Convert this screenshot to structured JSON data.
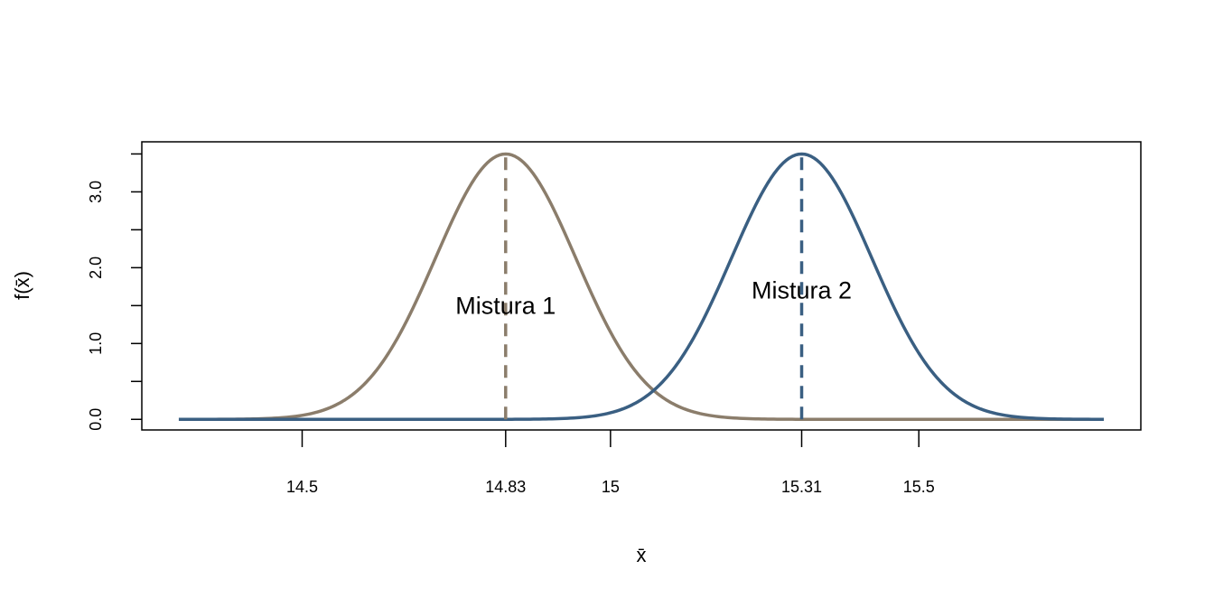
{
  "chart_data": {
    "type": "line",
    "title": "",
    "xlabel": "x̄",
    "ylabel": "f(x̄)",
    "xlim": [
      14.24,
      15.86
    ],
    "ylim": [
      -0.14,
      3.66
    ],
    "x_ticks": [
      14.5,
      14.83,
      15,
      15.31,
      15.5
    ],
    "x_tick_labels": [
      "14.5",
      "14.83",
      "15",
      "15.31",
      "15.5"
    ],
    "y_ticks": [
      0,
      0.5,
      1,
      1.5,
      2,
      2.5,
      3,
      3.5
    ],
    "y_tick_labels": [
      {
        "value": 0,
        "label": "0.0"
      },
      {
        "value": 1,
        "label": "1.0"
      },
      {
        "value": 2,
        "label": "2.0"
      },
      {
        "value": 3,
        "label": "3.0"
      }
    ],
    "grid": false,
    "series": [
      {
        "name": "Mistura 1",
        "mean": 14.83,
        "sd": 0.114,
        "color": "#8B7D6B",
        "x_range": [
          14.3,
          15.8
        ]
      },
      {
        "name": "Mistura 2",
        "mean": 15.31,
        "sd": 0.114,
        "color": "#3A5F82",
        "x_range": [
          14.3,
          15.8
        ]
      }
    ],
    "vlines": [
      {
        "x": 14.83,
        "y_to": 3.5,
        "color": "#8B7D6B",
        "style": "dashed"
      },
      {
        "x": 15.31,
        "y_to": 3.5,
        "color": "#3A5F82",
        "style": "dashed"
      }
    ],
    "annotations": [
      {
        "text": "Mistura 1",
        "x": 14.83,
        "y": 1.5
      },
      {
        "text": "Mistura 2",
        "x": 15.31,
        "y": 1.7
      }
    ]
  }
}
